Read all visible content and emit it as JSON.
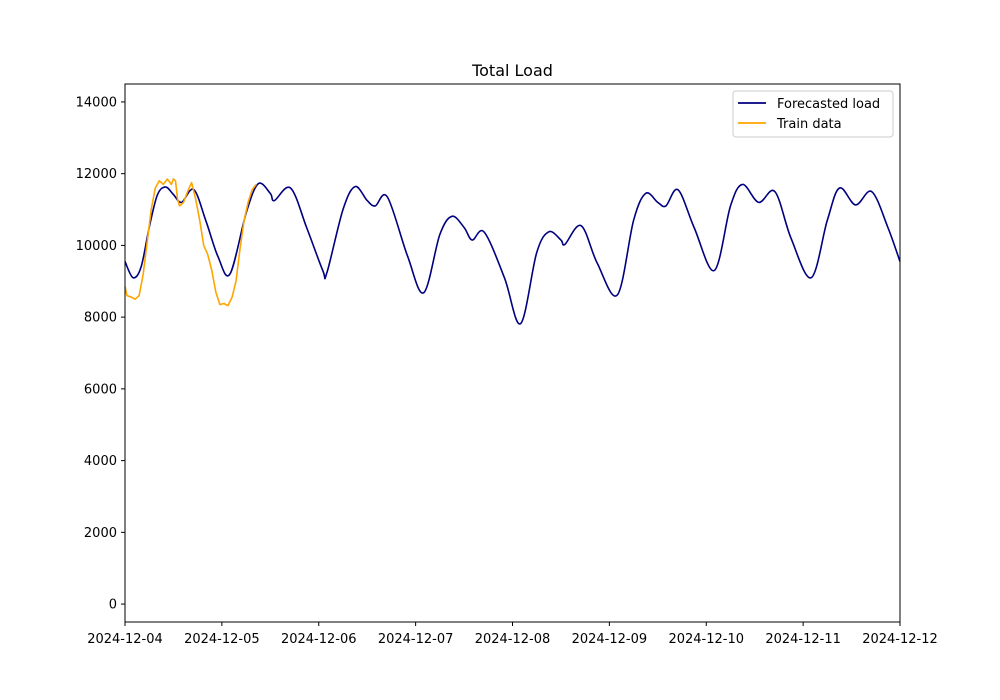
{
  "chart_data": {
    "type": "line",
    "title": "Total Load",
    "xlabel": "",
    "ylabel": "",
    "xlim": [
      "2024-12-04",
      "2024-12-12"
    ],
    "ylim": [
      -500,
      14500
    ],
    "x_ticks": [
      "2024-12-04",
      "2024-12-05",
      "2024-12-06",
      "2024-12-07",
      "2024-12-08",
      "2024-12-09",
      "2024-12-10",
      "2024-12-11",
      "2024-12-12"
    ],
    "y_ticks": [
      0,
      2000,
      4000,
      6000,
      8000,
      10000,
      12000,
      14000
    ],
    "grid": false,
    "legend_position": "top-right",
    "series": [
      {
        "name": "Forecasted load",
        "color": "#000080",
        "points": [
          [
            "2024-12-04 00:00",
            9550
          ],
          [
            "2024-12-04 02:00",
            9100
          ],
          [
            "2024-12-04 04:00",
            9400
          ],
          [
            "2024-12-04 06:00",
            10500
          ],
          [
            "2024-12-04 08:00",
            11400
          ],
          [
            "2024-12-04 10:00",
            11630
          ],
          [
            "2024-12-04 12:00",
            11420
          ],
          [
            "2024-12-04 14:00",
            11200
          ],
          [
            "2024-12-04 17:00",
            11560
          ],
          [
            "2024-12-04 20:00",
            10700
          ],
          [
            "2024-12-04 23:00",
            9700
          ],
          [
            "2024-12-05 02:00",
            9200
          ],
          [
            "2024-12-05 06:00",
            10900
          ],
          [
            "2024-12-05 09:00",
            11720
          ],
          [
            "2024-12-05 12:00",
            11450
          ],
          [
            "2024-12-05 13:00",
            11250
          ],
          [
            "2024-12-05 17:00",
            11600
          ],
          [
            "2024-12-05 21:00",
            10500
          ],
          [
            "2024-12-06 01:00",
            9300
          ],
          [
            "2024-12-06 02:00",
            9230
          ],
          [
            "2024-12-06 06:00",
            11000
          ],
          [
            "2024-12-06 09:00",
            11640
          ],
          [
            "2024-12-06 12:00",
            11250
          ],
          [
            "2024-12-06 14:00",
            11100
          ],
          [
            "2024-12-06 17:00",
            11350
          ],
          [
            "2024-12-06 22:00",
            9700
          ],
          [
            "2024-12-07 02:00",
            8680
          ],
          [
            "2024-12-07 06:00",
            10300
          ],
          [
            "2024-12-07 09:00",
            10810
          ],
          [
            "2024-12-07 12:00",
            10500
          ],
          [
            "2024-12-07 14:00",
            10150
          ],
          [
            "2024-12-07 17:00",
            10370
          ],
          [
            "2024-12-07 22:00",
            9100
          ],
          [
            "2024-12-08 02:00",
            7820
          ],
          [
            "2024-12-08 06:00",
            9800
          ],
          [
            "2024-12-08 09:00",
            10380
          ],
          [
            "2024-12-08 12:00",
            10150
          ],
          [
            "2024-12-08 13:00",
            10030
          ],
          [
            "2024-12-08 17:00",
            10550
          ],
          [
            "2024-12-08 21:00",
            9500
          ],
          [
            "2024-12-09 02:00",
            8620
          ],
          [
            "2024-12-09 06:00",
            10700
          ],
          [
            "2024-12-09 09:00",
            11450
          ],
          [
            "2024-12-09 12:00",
            11200
          ],
          [
            "2024-12-09 14:00",
            11100
          ],
          [
            "2024-12-09 17:00",
            11550
          ],
          [
            "2024-12-09 21:00",
            10500
          ],
          [
            "2024-12-10 02:00",
            9300
          ],
          [
            "2024-12-10 06:00",
            11100
          ],
          [
            "2024-12-10 09:00",
            11700
          ],
          [
            "2024-12-10 13:00",
            11200
          ],
          [
            "2024-12-10 17:00",
            11500
          ],
          [
            "2024-12-10 21:00",
            10200
          ],
          [
            "2024-12-11 02:00",
            9100
          ],
          [
            "2024-12-11 06:00",
            10700
          ],
          [
            "2024-12-11 09:00",
            11600
          ],
          [
            "2024-12-11 13:00",
            11130
          ],
          [
            "2024-12-11 17:00",
            11500
          ],
          [
            "2024-12-11 21:00",
            10500
          ],
          [
            "2024-12-12 00:00",
            9550
          ]
        ]
      },
      {
        "name": "Train data",
        "color": "#ffa500",
        "points": [
          [
            "2024-12-04 00:00",
            8850
          ],
          [
            "2024-12-04 00:30",
            8600
          ],
          [
            "2024-12-04 01:30",
            8560
          ],
          [
            "2024-12-04 02:30",
            8500
          ],
          [
            "2024-12-04 03:30",
            8600
          ],
          [
            "2024-12-04 04:30",
            9200
          ],
          [
            "2024-12-04 05:30",
            10100
          ],
          [
            "2024-12-04 06:30",
            11000
          ],
          [
            "2024-12-04 07:30",
            11600
          ],
          [
            "2024-12-04 08:30",
            11800
          ],
          [
            "2024-12-04 09:30",
            11700
          ],
          [
            "2024-12-04 10:30",
            11850
          ],
          [
            "2024-12-04 11:30",
            11700
          ],
          [
            "2024-12-04 12:00",
            11850
          ],
          [
            "2024-12-04 12:30",
            11800
          ],
          [
            "2024-12-04 13:00",
            11300
          ],
          [
            "2024-12-04 13:30",
            11100
          ],
          [
            "2024-12-04 14:30",
            11200
          ],
          [
            "2024-12-04 15:30",
            11500
          ],
          [
            "2024-12-04 16:30",
            11750
          ],
          [
            "2024-12-04 17:30",
            11300
          ],
          [
            "2024-12-04 18:30",
            10700
          ],
          [
            "2024-12-04 19:30",
            10000
          ],
          [
            "2024-12-04 20:30",
            9750
          ],
          [
            "2024-12-04 21:30",
            9300
          ],
          [
            "2024-12-04 22:30",
            8700
          ],
          [
            "2024-12-04 23:30",
            8350
          ],
          [
            "2024-12-05 00:30",
            8380
          ],
          [
            "2024-12-05 01:30",
            8320
          ],
          [
            "2024-12-05 02:30",
            8550
          ],
          [
            "2024-12-05 03:30",
            9000
          ],
          [
            "2024-12-05 04:30",
            9900
          ],
          [
            "2024-12-05 05:30",
            10700
          ],
          [
            "2024-12-05 06:30",
            11200
          ],
          [
            "2024-12-05 07:30",
            11550
          ],
          [
            "2024-12-05 08:30",
            11700
          ]
        ]
      }
    ]
  }
}
